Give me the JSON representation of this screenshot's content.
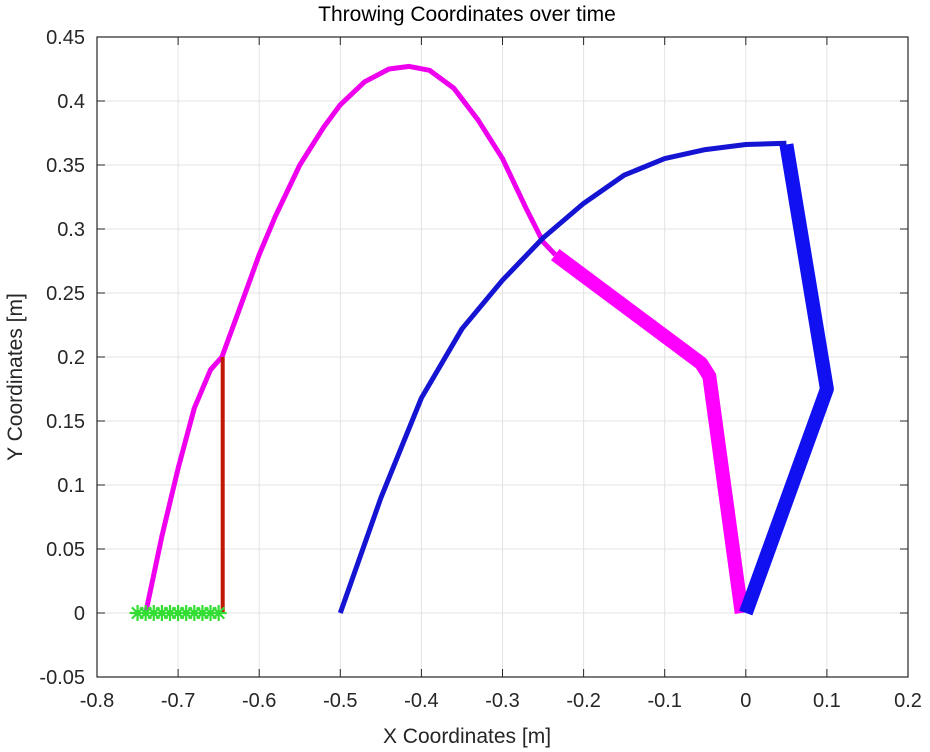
{
  "chart_data": {
    "type": "line",
    "title": "Throwing Coordinates over time",
    "xlabel": "X Coordinates [m]",
    "ylabel": "Y Coordinates [m]",
    "xlim": [
      -0.8,
      0.2
    ],
    "ylim": [
      -0.05,
      0.45
    ],
    "grid": true,
    "legend": null,
    "x_ticks": [
      -0.8,
      -0.7,
      -0.6,
      -0.5,
      -0.4,
      -0.3,
      -0.2,
      -0.1,
      0,
      0.1,
      0.2
    ],
    "x_tick_labels": [
      "-0.8",
      "-0.7",
      "-0.6",
      "-0.5",
      "-0.4",
      "-0.3",
      "-0.2",
      "-0.1",
      "0",
      "0.1",
      "0.2"
    ],
    "y_ticks": [
      -0.05,
      0,
      0.05,
      0.1,
      0.15,
      0.2,
      0.25,
      0.3,
      0.35,
      0.4,
      0.45
    ],
    "y_tick_labels": [
      "-0.05",
      "0",
      "0.05",
      "0.1",
      "0.15",
      "0.2",
      "0.25",
      "0.3",
      "0.35",
      "0.4",
      "0.45"
    ],
    "series": [
      {
        "name": "magenta-projectile-trajectory",
        "color": "#ee00ee",
        "width": 5,
        "x": [
          -0.74,
          -0.72,
          -0.7,
          -0.68,
          -0.66,
          -0.646,
          -0.62,
          -0.6,
          -0.58,
          -0.55,
          -0.52,
          -0.5,
          -0.47,
          -0.44,
          -0.415,
          -0.39,
          -0.36,
          -0.33,
          -0.3,
          -0.27,
          -0.25,
          -0.235
        ],
        "y": [
          0.0,
          0.06,
          0.113,
          0.16,
          0.19,
          0.2,
          0.245,
          0.28,
          0.31,
          0.35,
          0.38,
          0.397,
          0.415,
          0.425,
          0.427,
          0.424,
          0.41,
          0.385,
          0.355,
          0.315,
          0.29,
          0.28
        ]
      },
      {
        "name": "magenta-arm-path",
        "color": "#ff00ff",
        "width": 14,
        "x": [
          -0.235,
          -0.055,
          -0.045,
          -0.005
        ],
        "y": [
          0.28,
          0.195,
          0.185,
          0.0
        ]
      },
      {
        "name": "blue-projectile-trajectory",
        "color": "#1414d2",
        "width": 5,
        "x": [
          -0.5,
          -0.45,
          -0.4,
          -0.35,
          -0.3,
          -0.25,
          -0.2,
          -0.15,
          -0.1,
          -0.05,
          0.0,
          0.05
        ],
        "y": [
          0.0,
          0.09,
          0.168,
          0.222,
          0.26,
          0.293,
          0.32,
          0.342,
          0.355,
          0.362,
          0.366,
          0.367
        ]
      },
      {
        "name": "blue-arm-path",
        "color": "#1010f0",
        "width": 14,
        "x": [
          0.05,
          0.1,
          0.0
        ],
        "y": [
          0.366,
          0.175,
          0.0
        ]
      },
      {
        "name": "red-vertical-line",
        "color": "#c01800",
        "width": 4,
        "x": [
          -0.645,
          -0.645
        ],
        "y": [
          0.0,
          0.2
        ]
      },
      {
        "name": "green-star-markers",
        "color": "#33dd33",
        "marker": "*",
        "x": [
          -0.75,
          -0.74,
          -0.73,
          -0.72,
          -0.71,
          -0.7,
          -0.69,
          -0.68,
          -0.67,
          -0.66,
          -0.65
        ],
        "y": [
          0,
          0,
          0,
          0,
          0,
          0,
          0,
          0,
          0,
          0,
          0
        ]
      }
    ]
  }
}
